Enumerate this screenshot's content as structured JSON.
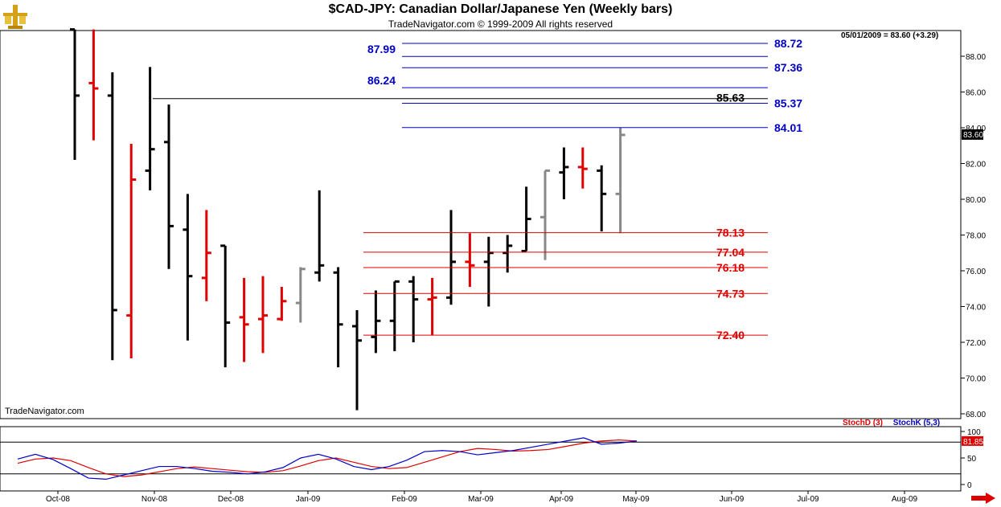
{
  "header": {
    "title": "$CAD-JPY:  Canadian Dollar/Japanese Yen  (Weekly bars)",
    "copyright": "TradeNavigator.com © 1999-2009 All rights reserved",
    "last_info": "05/01/2009 = 83.60 (+3.29)",
    "watermark": "TradeNavigator.com"
  },
  "chart_data": [
    {
      "type": "ohlc",
      "ylim": [
        67.5,
        89.5
      ],
      "y_ticks": [
        "68.00",
        "70.00",
        "72.00",
        "74.00",
        "76.00",
        "78.00",
        "80.00",
        "82.00",
        "84.00",
        "86.00",
        "88.00"
      ],
      "x_labels": [
        "Oct-08",
        "Nov-08",
        "Dec-08",
        "Jan-09",
        "Feb-09",
        "Mar-09",
        "Apr-09",
        "May-09",
        "Jun-09",
        "Jul-09",
        "Aug-09"
      ],
      "last_price_tag": "83.60",
      "colors": {
        "up": "#000000",
        "down": "#e00000",
        "neutral": "#888888",
        "fib_high": "#0000c8",
        "fib_low": "#e00000",
        "pivot": "#000000"
      },
      "bars": [
        {
          "week": "2008-09-19",
          "open": 89.5,
          "high": 89.5,
          "low": 82.2,
          "close": 85.8,
          "color": "up"
        },
        {
          "week": "2008-09-26",
          "open": 86.5,
          "high": 89.5,
          "low": 83.3,
          "close": 86.2,
          "color": "down"
        },
        {
          "week": "2008-10-03",
          "open": 85.8,
          "high": 87.1,
          "low": 71.0,
          "close": 73.8,
          "color": "up"
        },
        {
          "week": "2008-10-10",
          "open": 73.5,
          "high": 83.1,
          "low": 71.1,
          "close": 81.1,
          "color": "down"
        },
        {
          "week": "2008-10-17",
          "open": 81.6,
          "high": 87.4,
          "low": 80.5,
          "close": 82.8,
          "color": "up"
        },
        {
          "week": "2008-10-24",
          "open": 83.2,
          "high": 85.3,
          "low": 76.1,
          "close": 78.5,
          "color": "up"
        },
        {
          "week": "2008-10-31",
          "open": 78.3,
          "high": 80.3,
          "low": 72.1,
          "close": 75.7,
          "color": "up"
        },
        {
          "week": "2008-11-07",
          "open": 75.6,
          "high": 79.4,
          "low": 74.3,
          "close": 77.0,
          "color": "down"
        },
        {
          "week": "2008-11-14",
          "open": 77.4,
          "high": 77.4,
          "low": 70.6,
          "close": 73.1,
          "color": "up"
        },
        {
          "week": "2008-11-21",
          "open": 73.4,
          "high": 75.6,
          "low": 70.9,
          "close": 73.0,
          "color": "down"
        },
        {
          "week": "2008-11-28",
          "open": 73.3,
          "high": 75.7,
          "low": 71.4,
          "close": 73.5,
          "color": "down"
        },
        {
          "week": "2008-12-05",
          "open": 73.3,
          "high": 75.1,
          "low": 73.2,
          "close": 74.3,
          "color": "down"
        },
        {
          "week": "2008-12-12",
          "open": 74.2,
          "high": 76.2,
          "low": 73.1,
          "close": 76.1,
          "color": "neutral"
        },
        {
          "week": "2008-12-19",
          "open": 75.9,
          "high": 80.5,
          "low": 75.4,
          "close": 76.3,
          "color": "up"
        },
        {
          "week": "2008-12-26",
          "open": 75.9,
          "high": 76.2,
          "low": 70.6,
          "close": 73.0,
          "color": "up"
        },
        {
          "week": "2009-01-02",
          "open": 72.9,
          "high": 73.8,
          "low": 68.2,
          "close": 72.1,
          "color": "up"
        },
        {
          "week": "2009-01-09",
          "open": 72.3,
          "high": 74.9,
          "low": 71.4,
          "close": 73.2,
          "color": "up"
        },
        {
          "week": "2009-01-16",
          "open": 73.2,
          "high": 75.4,
          "low": 71.5,
          "close": 75.4,
          "color": "up"
        },
        {
          "week": "2009-01-23",
          "open": 75.4,
          "high": 75.7,
          "low": 72.0,
          "close": 74.4,
          "color": "up"
        },
        {
          "week": "2009-01-30",
          "open": 74.4,
          "high": 75.6,
          "low": 72.4,
          "close": 74.5,
          "color": "down"
        },
        {
          "week": "2009-02-06",
          "open": 74.5,
          "high": 79.4,
          "low": 74.1,
          "close": 76.5,
          "color": "up"
        },
        {
          "week": "2009-02-13",
          "open": 76.5,
          "high": 78.1,
          "low": 75.1,
          "close": 76.3,
          "color": "down"
        },
        {
          "week": "2009-02-20",
          "open": 76.5,
          "high": 77.9,
          "low": 74.0,
          "close": 77.0,
          "color": "up"
        },
        {
          "week": "2009-02-27",
          "open": 77.0,
          "high": 78.0,
          "low": 75.9,
          "close": 77.4,
          "color": "up"
        },
        {
          "week": "2009-03-06",
          "open": 77.1,
          "high": 80.7,
          "low": 77.1,
          "close": 78.9,
          "color": "up"
        },
        {
          "week": "2009-03-13",
          "open": 79.0,
          "high": 81.6,
          "low": 76.6,
          "close": 81.6,
          "color": "neutral"
        },
        {
          "week": "2009-03-20",
          "open": 81.5,
          "high": 82.9,
          "low": 80.0,
          "close": 81.8,
          "color": "up"
        },
        {
          "week": "2009-03-27",
          "open": 81.8,
          "high": 82.9,
          "low": 80.6,
          "close": 81.7,
          "color": "down"
        },
        {
          "week": "2009-04-03",
          "open": 81.6,
          "high": 81.9,
          "low": 78.2,
          "close": 80.3,
          "color": "up"
        },
        {
          "week": "2009-04-10",
          "open": 80.3,
          "high": 84.0,
          "low": 78.1,
          "close": 83.6,
          "color": "neutral"
        }
      ],
      "fib_levels_high": [
        {
          "label": "88.72",
          "value": 88.72
        },
        {
          "label": "87.99",
          "value": 87.99
        },
        {
          "label": "87.36",
          "value": 87.36
        },
        {
          "label": "86.24",
          "value": 86.24
        },
        {
          "label": "85.37",
          "value": 85.37
        },
        {
          "label": "84.01",
          "value": 84.01
        }
      ],
      "pivot_level": {
        "label": "85.63",
        "value": 85.63
      },
      "fib_levels_low": [
        {
          "label": "78.13",
          "value": 78.13
        },
        {
          "label": "77.04",
          "value": 77.04
        },
        {
          "label": "76.18",
          "value": 76.18
        },
        {
          "label": "74.73",
          "value": 74.73
        },
        {
          "label": "72.40",
          "value": 72.4
        }
      ]
    },
    {
      "type": "line",
      "legend": [
        "StochD (3)",
        "StochK (5,3)"
      ],
      "ylim": [
        -10,
        110
      ],
      "y_ticks": [
        "0",
        "50",
        "100"
      ],
      "last_value_tag": "81.85",
      "series": [
        {
          "name": "StochD (3)",
          "color": "#e00000",
          "values": [
            40,
            48,
            50,
            45,
            32,
            20,
            15,
            18,
            24,
            30,
            33,
            30,
            27,
            24,
            23,
            26,
            35,
            45,
            50,
            42,
            34,
            30,
            32,
            42,
            52,
            62,
            68,
            66,
            63,
            64,
            66,
            72,
            78,
            82,
            84,
            82
          ]
        },
        {
          "name": "StochK (5,3)",
          "color": "#0000c8",
          "values": [
            48,
            57,
            47,
            30,
            12,
            10,
            18,
            26,
            34,
            34,
            30,
            25,
            23,
            20,
            24,
            32,
            50,
            57,
            48,
            34,
            28,
            34,
            46,
            62,
            64,
            62,
            56,
            60,
            64,
            70,
            76,
            82,
            88,
            76,
            78,
            82
          ]
        }
      ]
    }
  ]
}
